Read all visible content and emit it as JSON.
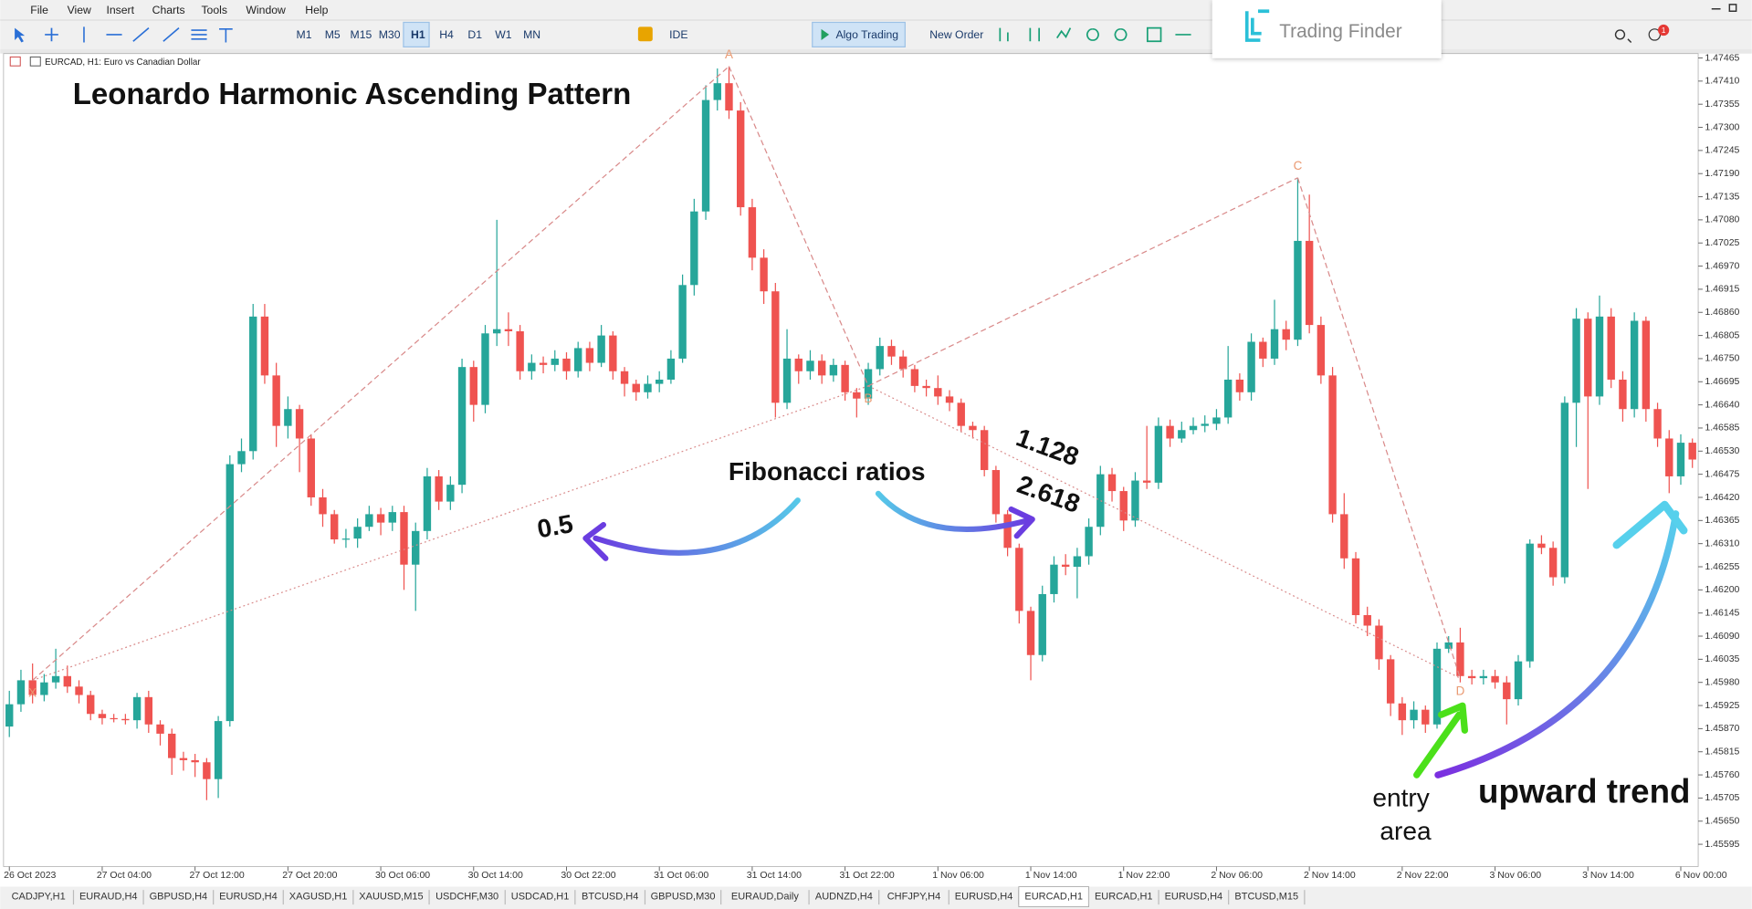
{
  "chart_data": {
    "type": "candlestick",
    "title": "Leonardo Harmonic Ascending Pattern",
    "symbol_label": "EURCAD, H1:  Euro vs Canadian Dollar",
    "up_color": "#26a69a",
    "down_color": "#ef5350",
    "grid": false,
    "ylim": [
      1.45542,
      1.47486
    ],
    "yticks": [
      1.47465,
      {
        "value": 1.4741,
        "label": "1.47410"
      },
      1.47355,
      {
        "value": 1.473,
        "label": "1.47300"
      },
      1.47245,
      {
        "value": 1.4719,
        "label": "1.47190"
      },
      1.47135,
      {
        "value": 1.4708,
        "label": "1.47080"
      },
      1.47025,
      {
        "value": 1.4697,
        "label": "1.46970"
      },
      1.46915,
      {
        "value": 1.4686,
        "label": "1.46860"
      },
      1.46805,
      {
        "value": 1.4675,
        "label": "1.46750"
      },
      1.46695,
      {
        "value": 1.4664,
        "label": "1.46640"
      },
      1.46585,
      {
        "value": 1.4653,
        "label": "1.46530"
      },
      1.46475,
      {
        "value": 1.4642,
        "label": "1.46420"
      },
      1.46365,
      {
        "value": 1.4631,
        "label": "1.46310"
      },
      1.46255,
      {
        "value": 1.462,
        "label": "1.46200"
      },
      1.46145,
      {
        "value": 1.4609,
        "label": "1.46090"
      },
      1.46035,
      {
        "value": 1.4598,
        "label": "1.45980"
      },
      1.45925,
      {
        "value": 1.4587,
        "label": "1.45870"
      },
      1.45815,
      {
        "value": 1.4576,
        "label": "1.45760"
      },
      1.45705,
      {
        "value": 1.4565,
        "label": "1.45650"
      },
      1.45595
    ],
    "categories": [
      "26 Oct 2023",
      null,
      null,
      null,
      null,
      null,
      null,
      null,
      "27 Oct 04:00",
      null,
      null,
      null,
      null,
      null,
      null,
      null,
      "27 Oct 12:00",
      null,
      null,
      null,
      null,
      null,
      null,
      null,
      "27 Oct 20:00",
      null,
      null,
      null,
      null,
      null,
      null,
      null,
      "30 Oct 06:00",
      null,
      null,
      null,
      null,
      null,
      null,
      null,
      "30 Oct 14:00",
      null,
      null,
      null,
      null,
      null,
      null,
      null,
      "30 Oct 22:00",
      null,
      null,
      null,
      null,
      null,
      null,
      null,
      "31 Oct 06:00",
      null,
      null,
      null,
      null,
      null,
      null,
      null,
      "31 Oct 14:00",
      null,
      null,
      null,
      null,
      null,
      null,
      null,
      "31 Oct 22:00",
      null,
      null,
      null,
      null,
      null,
      null,
      null,
      "1 Nov 06:00",
      null,
      null,
      null,
      null,
      null,
      null,
      null,
      "1 Nov 14:00",
      null,
      null,
      null,
      null,
      null,
      null,
      null,
      "1 Nov 22:00",
      null,
      null,
      null,
      null,
      null,
      null,
      null,
      "2 Nov 06:00",
      null,
      null,
      null,
      null,
      null,
      null,
      null,
      "2 Nov 14:00",
      null,
      null,
      null,
      null,
      null,
      null,
      null,
      "2 Nov 22:00",
      null,
      null,
      null,
      null,
      null,
      null,
      null,
      "3 Nov 06:00",
      null,
      null,
      null,
      null,
      null,
      null,
      null,
      "3 Nov 14:00",
      null,
      null,
      null,
      null,
      null,
      null,
      null,
      "6 Nov 00:00",
      null
    ],
    "candles": [
      [
        1.45875,
        1.4596,
        1.4585,
        1.45928
      ],
      [
        1.45928,
        1.4601,
        1.4591,
        1.45985
      ],
      [
        1.45985,
        1.46025,
        1.4593,
        1.4595
      ],
      [
        1.4595,
        1.46,
        1.45935,
        1.4598
      ],
      [
        1.4598,
        1.4606,
        1.45965,
        1.45995
      ],
      [
        1.45995,
        1.4602,
        1.45955,
        1.4597
      ],
      [
        1.4597,
        1.45985,
        1.4593,
        1.4595
      ],
      [
        1.4595,
        1.4596,
        1.4589,
        1.45905
      ],
      [
        1.45905,
        1.45915,
        1.4588,
        1.45895
      ],
      [
        1.45895,
        1.45905,
        1.45885,
        1.45893
      ],
      [
        1.45893,
        1.45905,
        1.4588,
        1.4589
      ],
      [
        1.4589,
        1.45955,
        1.4587,
        1.45945
      ],
      [
        1.45945,
        1.4596,
        1.4586,
        1.4588
      ],
      [
        1.4588,
        1.4589,
        1.4583,
        1.45858
      ],
      [
        1.45858,
        1.4587,
        1.4576,
        1.458
      ],
      [
        1.458,
        1.45815,
        1.4577,
        1.45795
      ],
      [
        1.45795,
        1.4581,
        1.45755,
        1.4579
      ],
      [
        1.4579,
        1.458,
        1.457,
        1.4575
      ],
      [
        1.4575,
        1.459,
        1.45705,
        1.45888
      ],
      [
        1.45888,
        1.4652,
        1.45875,
        1.46499
      ],
      [
        1.46499,
        1.4656,
        1.4648,
        1.4653
      ],
      [
        1.4653,
        1.4688,
        1.4651,
        1.4685
      ],
      [
        1.4685,
        1.4688,
        1.4669,
        1.4671
      ],
      [
        1.4671,
        1.4674,
        1.4654,
        1.4659
      ],
      [
        1.4659,
        1.4666,
        1.4656,
        1.4663
      ],
      [
        1.4663,
        1.4664,
        1.4648,
        1.4656
      ],
      [
        1.4656,
        1.4657,
        1.464,
        1.4642
      ],
      [
        1.4642,
        1.4644,
        1.4635,
        1.4638
      ],
      [
        1.4638,
        1.4639,
        1.4631,
        1.4632
      ],
      [
        1.4632,
        1.46345,
        1.463,
        1.46322
      ],
      [
        1.46322,
        1.4637,
        1.463,
        1.4635
      ],
      [
        1.4635,
        1.464,
        1.4634,
        1.4638
      ],
      [
        1.4638,
        1.46395,
        1.4633,
        1.4636
      ],
      [
        1.4636,
        1.464,
        1.4634,
        1.46385
      ],
      [
        1.46385,
        1.464,
        1.462,
        1.4626
      ],
      [
        1.4626,
        1.4636,
        1.4615,
        1.4634
      ],
      [
        1.4634,
        1.4649,
        1.4632,
        1.4647
      ],
      [
        1.4647,
        1.46485,
        1.4639,
        1.4641
      ],
      [
        1.4641,
        1.4647,
        1.4639,
        1.4645
      ],
      [
        1.4645,
        1.4675,
        1.4643,
        1.4673
      ],
      [
        1.4673,
        1.46745,
        1.466,
        1.4664
      ],
      [
        1.4664,
        1.4683,
        1.4662,
        1.4681
      ],
      [
        1.4681,
        1.4708,
        1.4678,
        1.4682
      ],
      [
        1.4682,
        1.4686,
        1.4678,
        1.46815
      ],
      [
        1.46815,
        1.4683,
        1.467,
        1.4672
      ],
      [
        1.4672,
        1.4676,
        1.467,
        1.4674
      ],
      [
        1.4674,
        1.46755,
        1.46715,
        1.46735
      ],
      [
        1.46735,
        1.4677,
        1.4672,
        1.4675
      ],
      [
        1.4675,
        1.46765,
        1.467,
        1.4672
      ],
      [
        1.4672,
        1.4679,
        1.46705,
        1.46775
      ],
      [
        1.46775,
        1.4679,
        1.4672,
        1.4674
      ],
      [
        1.4674,
        1.4683,
        1.4673,
        1.46805
      ],
      [
        1.46805,
        1.46815,
        1.467,
        1.4672
      ],
      [
        1.4672,
        1.4673,
        1.4666,
        1.4669
      ],
      [
        1.4669,
        1.467,
        1.4665,
        1.4667
      ],
      [
        1.4667,
        1.4671,
        1.46655,
        1.4669
      ],
      [
        1.4669,
        1.4672,
        1.4667,
        1.467
      ],
      [
        1.467,
        1.4677,
        1.4669,
        1.4675
      ],
      [
        1.4675,
        1.4695,
        1.4674,
        1.46925
      ],
      [
        1.46925,
        1.4713,
        1.469,
        1.471
      ],
      [
        1.471,
        1.474,
        1.4708,
        1.47365
      ],
      [
        1.47365,
        1.4744,
        1.4734,
        1.47405
      ],
      [
        1.47405,
        1.47445,
        1.4732,
        1.4734
      ],
      [
        1.4734,
        1.4736,
        1.4709,
        1.4711
      ],
      [
        1.4711,
        1.4713,
        1.4696,
        1.4699
      ],
      [
        1.4699,
        1.4701,
        1.4688,
        1.4691
      ],
      [
        1.4691,
        1.4693,
        1.4661,
        1.46645
      ],
      [
        1.46645,
        1.4682,
        1.4663,
        1.4675
      ],
      [
        1.4675,
        1.4676,
        1.4669,
        1.4672
      ],
      [
        1.4672,
        1.4677,
        1.467,
        1.46745
      ],
      [
        1.46745,
        1.4676,
        1.4669,
        1.4671
      ],
      [
        1.4671,
        1.4675,
        1.46695,
        1.46735
      ],
      [
        1.46735,
        1.46745,
        1.4665,
        1.4667
      ],
      [
        1.4667,
        1.4668,
        1.4661,
        1.46655
      ],
      [
        1.46655,
        1.4674,
        1.4664,
        1.46725
      ],
      [
        1.46725,
        1.468,
        1.4671,
        1.4678
      ],
      [
        1.4678,
        1.46795,
        1.46735,
        1.46755
      ],
      [
        1.46755,
        1.4677,
        1.46705,
        1.46725
      ],
      [
        1.46725,
        1.46735,
        1.4667,
        1.46685
      ],
      [
        1.46685,
        1.467,
        1.4666,
        1.4668
      ],
      [
        1.4668,
        1.4671,
        1.4664,
        1.4666
      ],
      [
        1.4666,
        1.46675,
        1.46625,
        1.46645
      ],
      [
        1.46645,
        1.46655,
        1.46575,
        1.4659
      ],
      [
        1.4659,
        1.466,
        1.4656,
        1.4658
      ],
      [
        1.4658,
        1.4659,
        1.4647,
        1.46485
      ],
      [
        1.46485,
        1.46495,
        1.4636,
        1.4638
      ],
      [
        1.4638,
        1.4639,
        1.4628,
        1.463
      ],
      [
        1.463,
        1.4631,
        1.4612,
        1.4615
      ],
      [
        1.4615,
        1.4616,
        1.45985,
        1.46045
      ],
      [
        1.46045,
        1.4621,
        1.4603,
        1.4619
      ],
      [
        1.4619,
        1.4628,
        1.4617,
        1.4626
      ],
      [
        1.4626,
        1.46285,
        1.46235,
        1.46255
      ],
      [
        1.46255,
        1.463,
        1.4618,
        1.4628
      ],
      [
        1.4628,
        1.4637,
        1.4626,
        1.4635
      ],
      [
        1.4635,
        1.46495,
        1.4633,
        1.46475
      ],
      [
        1.46475,
        1.4649,
        1.4641,
        1.46435
      ],
      [
        1.46435,
        1.46445,
        1.4634,
        1.46365
      ],
      [
        1.46365,
        1.4648,
        1.4635,
        1.4646
      ],
      [
        1.4646,
        1.4659,
        1.4644,
        1.46455
      ],
      [
        1.46455,
        1.4661,
        1.4644,
        1.4659
      ],
      [
        1.4659,
        1.46605,
        1.4654,
        1.4656
      ],
      [
        1.4656,
        1.466,
        1.4655,
        1.4658
      ],
      [
        1.4658,
        1.4661,
        1.4657,
        1.4659
      ],
      [
        1.4659,
        1.46615,
        1.46575,
        1.46595
      ],
      [
        1.46595,
        1.4663,
        1.4658,
        1.4661
      ],
      [
        1.4661,
        1.4678,
        1.46595,
        1.467
      ],
      [
        1.467,
        1.46715,
        1.4665,
        1.4667
      ],
      [
        1.4667,
        1.4681,
        1.4665,
        1.4679
      ],
      [
        1.4679,
        1.468,
        1.4673,
        1.4675
      ],
      [
        1.4675,
        1.4689,
        1.46735,
        1.4682
      ],
      [
        1.4682,
        1.4684,
        1.4677,
        1.46795
      ],
      [
        1.46795,
        1.4718,
        1.4678,
        1.4703
      ],
      [
        1.4703,
        1.4714,
        1.4681,
        1.4683
      ],
      [
        1.4683,
        1.4685,
        1.4669,
        1.4671
      ],
      [
        1.4671,
        1.4673,
        1.4636,
        1.4638
      ],
      [
        1.4638,
        1.4643,
        1.4625,
        1.46275
      ],
      [
        1.46275,
        1.4629,
        1.4612,
        1.4614
      ],
      [
        1.4614,
        1.4616,
        1.4609,
        1.46115
      ],
      [
        1.46115,
        1.4613,
        1.4601,
        1.46035
      ],
      [
        1.46035,
        1.46045,
        1.459,
        1.4593
      ],
      [
        1.4593,
        1.45945,
        1.45855,
        1.4589
      ],
      [
        1.4589,
        1.45935,
        1.4587,
        1.45915
      ],
      [
        1.45915,
        1.45925,
        1.4586,
        1.4588
      ],
      [
        1.4588,
        1.46075,
        1.4587,
        1.4606
      ],
      [
        1.4606,
        1.4609,
        1.4605,
        1.46075
      ],
      [
        1.46075,
        1.4611,
        1.4598,
        1.45995
      ],
      [
        1.45995,
        1.4601,
        1.45975,
        1.4599
      ],
      [
        1.4599,
        1.4601,
        1.45975,
        1.45995
      ],
      [
        1.45995,
        1.4601,
        1.45965,
        1.4598
      ],
      [
        1.4598,
        1.45995,
        1.4588,
        1.4594
      ],
      [
        1.4594,
        1.46045,
        1.45925,
        1.4603
      ],
      [
        1.4603,
        1.4632,
        1.46015,
        1.4631
      ],
      [
        1.4631,
        1.4633,
        1.46285,
        1.463
      ],
      [
        1.463,
        1.46315,
        1.4621,
        1.4623
      ],
      [
        1.4623,
        1.4666,
        1.46215,
        1.46645
      ],
      [
        1.46645,
        1.4687,
        1.4654,
        1.46845
      ],
      [
        1.46845,
        1.4686,
        1.4644,
        1.4666
      ],
      [
        1.4666,
        1.469,
        1.4664,
        1.4685
      ],
      [
        1.4685,
        1.4687,
        1.4668,
        1.467
      ],
      [
        1.467,
        1.4672,
        1.466,
        1.4663
      ],
      [
        1.4663,
        1.4686,
        1.4661,
        1.4684
      ],
      [
        1.4684,
        1.4685,
        1.466,
        1.4663
      ],
      [
        1.4663,
        1.46645,
        1.4654,
        1.4656
      ],
      [
        1.4656,
        1.4658,
        1.4643,
        1.4647
      ],
      [
        1.4647,
        1.4657,
        1.4645,
        1.4655
      ],
      [
        1.4655,
        1.4656,
        1.4649,
        1.4651
      ]
    ],
    "pattern": {
      "points": [
        {
          "label": "X",
          "index": 2,
          "price": 1.45985
        },
        {
          "label": "A",
          "index": 62,
          "price": 1.47445
        },
        {
          "label": "B",
          "index": 74,
          "price": 1.46685
        },
        {
          "label": "C",
          "index": 111,
          "price": 1.4718
        },
        {
          "label": "D",
          "index": 125,
          "price": 1.4599
        }
      ],
      "color": "#d98a8a",
      "label_color": "#ea9a72"
    },
    "annotations": {
      "fib_title": "Fibonacci ratios",
      "ratio_xb": "0.5",
      "ratio_bc": "1.128",
      "ratio_cd": "2.618",
      "entry_area": [
        "entry",
        "area"
      ],
      "trend": "upward trend"
    }
  },
  "ui": {
    "menu": [
      "File",
      "View",
      "Insert",
      "Charts",
      "Tools",
      "Window",
      "Help"
    ],
    "timeframes": [
      "M1",
      "M5",
      "M15",
      "M30",
      "H1",
      "H4",
      "D1",
      "W1",
      "MN"
    ],
    "active_timeframe": 4,
    "buttons": [
      "IDE",
      "Algo Trading",
      "New Order"
    ],
    "logo": "Trading Finder",
    "notification_count": 1,
    "tabs": [
      "CADJPY,H1",
      "EURAUD,H4",
      "GBPUSD,H4",
      "EURUSD,H4",
      "XAGUSD,H1",
      "XAUUSD,M15",
      "USDCHF,M30",
      "USDCAD,H1",
      "BTCUSD,H4",
      "GBPUSD,M30",
      "EURAUD,Daily",
      "AUDNZD,H4",
      "CHFJPY,H4",
      "EURUSD,H4",
      "EURCAD,H1",
      "EURCAD,H1",
      "EURUSD,H4",
      "BTCUSD,M15"
    ],
    "active_tab": 14
  }
}
